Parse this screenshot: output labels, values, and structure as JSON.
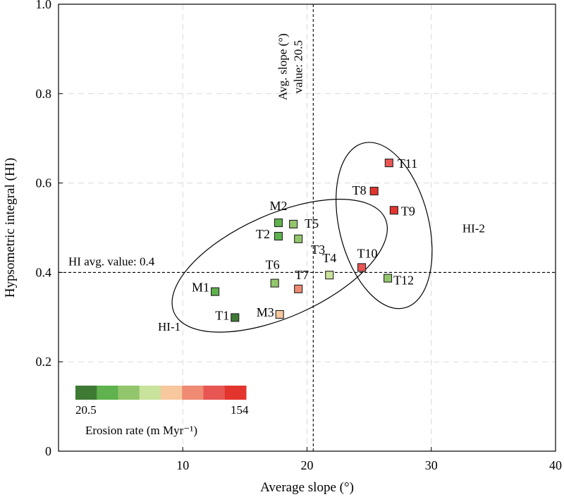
{
  "chart_data": {
    "type": "scatter",
    "title": "",
    "xlabel": "Average slope (°)",
    "ylabel": "Hypsometric integral (HI)",
    "xlim": [
      0,
      40
    ],
    "ylim": [
      0,
      1.0
    ],
    "x_ticks": [
      10,
      20,
      30,
      40
    ],
    "x_tick_labels": [
      "10",
      "20",
      "30",
      "40"
    ],
    "y_ticks": [
      0,
      0.2,
      0.4,
      0.6,
      0.8,
      1.0
    ],
    "y_tick_labels": [
      "0",
      "0.2",
      "0.4",
      "0.6",
      "0.8",
      "1.0"
    ],
    "grid": true,
    "grid_style": "dashed",
    "points": [
      {
        "label": "M1",
        "x": 12.6,
        "y": 0.357,
        "erosion_class": 2
      },
      {
        "label": "T1",
        "x": 14.2,
        "y": 0.299,
        "erosion_class": 1
      },
      {
        "label": "M3",
        "x": 17.8,
        "y": 0.306,
        "erosion_class": 5
      },
      {
        "label": "T6",
        "x": 17.4,
        "y": 0.376,
        "erosion_class": 3
      },
      {
        "label": "T7",
        "x": 19.3,
        "y": 0.363,
        "erosion_class": 6
      },
      {
        "label": "T4",
        "x": 21.8,
        "y": 0.394,
        "erosion_class": 4
      },
      {
        "label": "T2",
        "x": 17.7,
        "y": 0.481,
        "erosion_class": 2
      },
      {
        "label": "M2",
        "x": 17.7,
        "y": 0.511,
        "erosion_class": 2
      },
      {
        "label": "T5",
        "x": 18.9,
        "y": 0.508,
        "erosion_class": 3
      },
      {
        "label": "T3",
        "x": 19.3,
        "y": 0.475,
        "erosion_class": 3
      },
      {
        "label": "T10",
        "x": 24.4,
        "y": 0.411,
        "erosion_class": 7
      },
      {
        "label": "T12",
        "x": 26.5,
        "y": 0.387,
        "erosion_class": 3
      },
      {
        "label": "T8",
        "x": 25.4,
        "y": 0.582,
        "erosion_class": 8
      },
      {
        "label": "T9",
        "x": 27.0,
        "y": 0.539,
        "erosion_class": 8
      },
      {
        "label": "T11",
        "x": 26.6,
        "y": 0.645,
        "erosion_class": 7
      }
    ],
    "reference_lines": {
      "vertical": {
        "x": 20.5,
        "label": "Avg. slope (°) value: 20.5",
        "label_lines": [
          "Avg. slope (°)",
          "value: 20.5"
        ]
      },
      "horizontal": {
        "y": 0.4,
        "label": "HI avg. value: 0.4"
      }
    },
    "groups": [
      {
        "label": "HI-1",
        "center": [
          17.8,
          0.415
        ],
        "radius_x": 9.3,
        "radius_y": 0.115,
        "rotation_deg": -24
      },
      {
        "label": "HI-2",
        "center": [
          26.2,
          0.505
        ],
        "radius_x": 3.6,
        "radius_y": 0.19,
        "rotation_deg": -14
      }
    ],
    "group_label_positions": [
      {
        "label": "HI-1",
        "x": 8.0,
        "y": 0.27
      },
      {
        "label": "HI-2",
        "x": 32.5,
        "y": 0.49
      }
    ],
    "colorbar": {
      "title": "Erosion rate (m Myr⁻¹)",
      "min_label": "20.5",
      "max_label": "154",
      "min": 20.5,
      "max": 154,
      "colors": [
        "#3e7a34",
        "#5fb24d",
        "#93c66c",
        "#c9e29c",
        "#f7c79d",
        "#ee8b72",
        "#e85653",
        "#e3352e"
      ]
    }
  }
}
